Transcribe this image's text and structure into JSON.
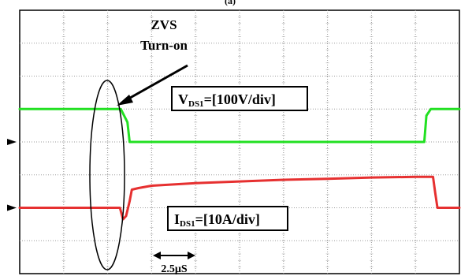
{
  "header": {
    "partial_caption": "(a)"
  },
  "chart_data": {
    "type": "line",
    "title": "",
    "xlabel": "",
    "ylabel": "",
    "grid": true,
    "grid_divisions": {
      "x": 10,
      "y": 8
    },
    "time_scale": {
      "label": "2.5µS",
      "unit_per_div": 2.5,
      "unit": "µs"
    },
    "x_range_divisions": [
      0,
      10
    ],
    "series": [
      {
        "name": "VDS1",
        "color": "#22e022",
        "volts_per_div": 100,
        "ground_div": 4,
        "x": [
          0,
          2.3,
          2.45,
          2.5,
          9.2,
          9.25,
          9.35,
          10
        ],
        "y": [
          1.0,
          1.0,
          0.6,
          0.0,
          0.0,
          0.8,
          1.0,
          1.0
        ]
      },
      {
        "name": "IDS1",
        "color": "#e63030",
        "amps_per_div": 10,
        "ground_div": 6,
        "x": [
          0,
          2.28,
          2.35,
          2.42,
          2.5,
          2.55,
          2.7,
          3.0,
          4.0,
          5.0,
          6.0,
          7.0,
          8.0,
          9.0,
          9.4,
          9.45,
          9.5,
          10
        ],
        "y": [
          0.0,
          0.0,
          -0.35,
          -0.25,
          0.2,
          0.55,
          0.6,
          0.67,
          0.75,
          0.8,
          0.85,
          0.88,
          0.92,
          0.94,
          0.94,
          0.45,
          0.0,
          0.0
        ]
      }
    ],
    "annotations": {
      "zvs_line1": "ZVS",
      "zvs_line2": "Turn-on",
      "vds_label": {
        "main": "V",
        "sub": "DS1",
        "rest": "=[100V/div]"
      },
      "ids_label": {
        "main": "I",
        "sub": "DS1",
        "rest": "=[10A/div]"
      }
    },
    "ground_markers": [
      4,
      6
    ]
  }
}
